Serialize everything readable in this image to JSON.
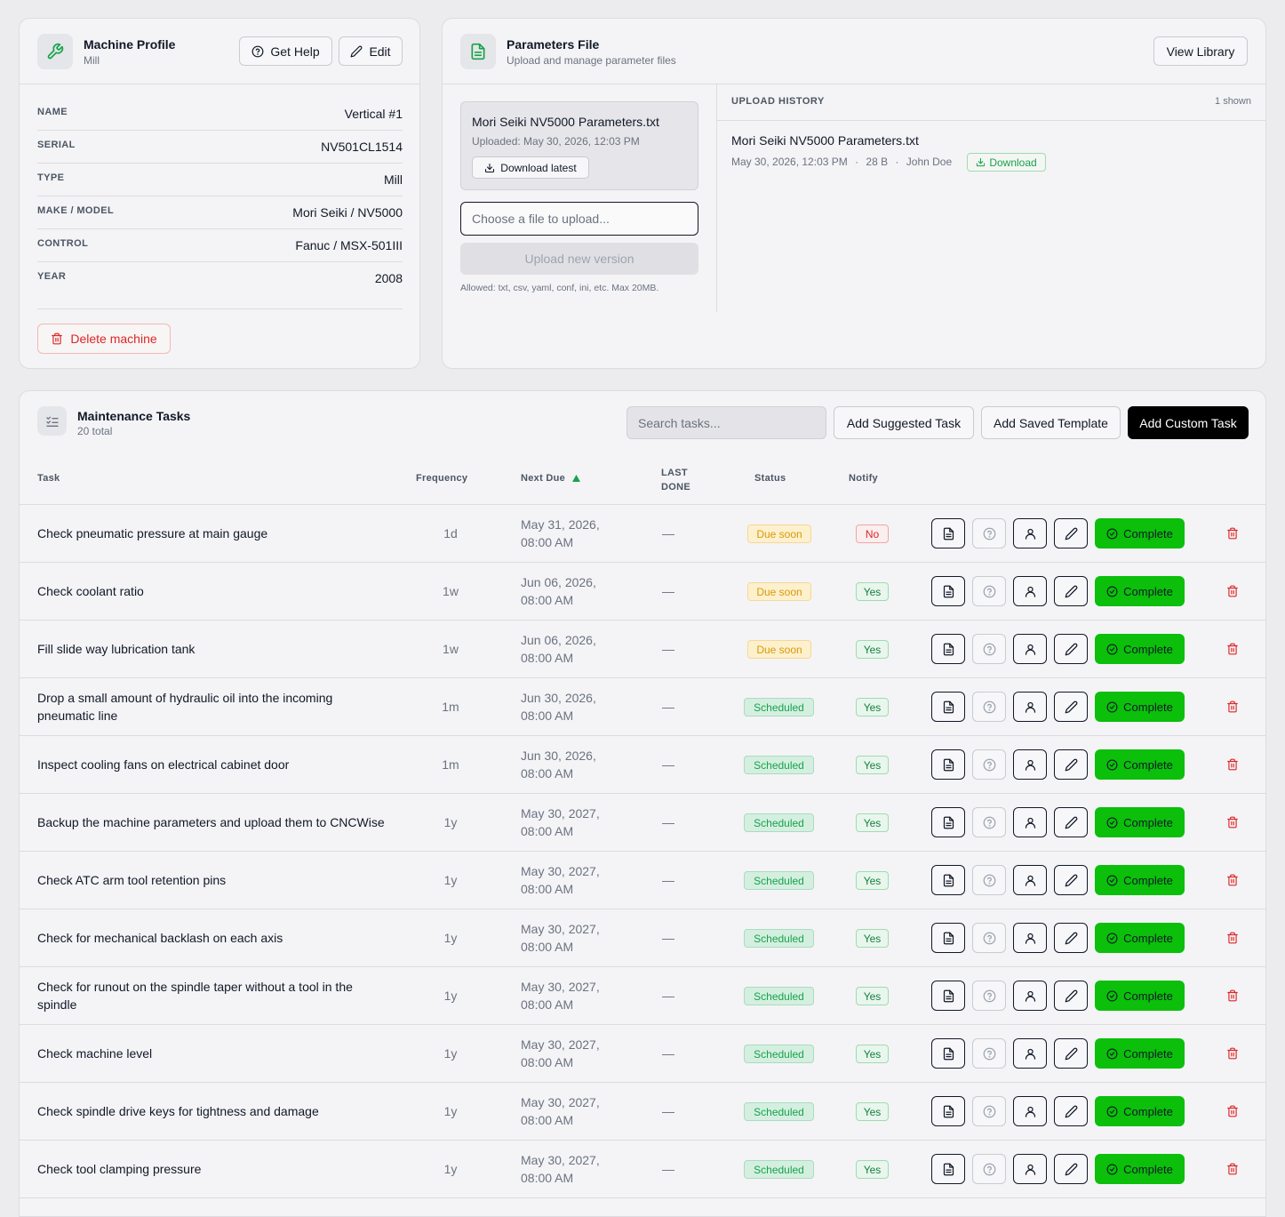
{
  "machine_profile": {
    "title": "Machine Profile",
    "subtitle": "Mill",
    "get_help_label": "Get Help",
    "edit_label": "Edit",
    "fields": [
      {
        "label": "NAME",
        "value": "Vertical #1"
      },
      {
        "label": "SERIAL",
        "value": "NV501CL1514"
      },
      {
        "label": "TYPE",
        "value": "Mill"
      },
      {
        "label": "MAKE / MODEL",
        "value": "Mori Seiki / NV5000"
      },
      {
        "label": "CONTROL",
        "value": "Fanuc / MSX-501III"
      },
      {
        "label": "YEAR",
        "value": "2008"
      }
    ],
    "delete_label": "Delete machine"
  },
  "parameters_file": {
    "title": "Parameters File",
    "subtitle": "Upload and manage parameter files",
    "view_library_label": "View Library",
    "current_file": {
      "name": "Mori Seiki NV5000 Parameters.txt",
      "uploaded": "Uploaded: May 30, 2026, 12:03 PM",
      "download_label": "Download latest"
    },
    "file_input_placeholder": "Choose a file to upload...",
    "upload_label": "Upload new version",
    "allowed_text": "Allowed: txt, csv, yaml, conf, ini, etc. Max 20MB.",
    "history": {
      "title": "UPLOAD HISTORY",
      "count": "1 shown",
      "items": [
        {
          "name": "Mori Seiki NV5000 Parameters.txt",
          "date": "May 30, 2026, 12:03 PM",
          "size": "28 B",
          "user": "John Doe",
          "download_label": "Download"
        }
      ]
    }
  },
  "maintenance": {
    "title": "Maintenance Tasks",
    "subtitle": "20 total",
    "search_placeholder": "Search tasks...",
    "add_suggested_label": "Add Suggested Task",
    "add_template_label": "Add Saved Template",
    "add_custom_label": "Add Custom Task",
    "columns": {
      "task": "Task",
      "frequency": "Frequency",
      "next_due": "Next Due",
      "last_done_1": "LAST",
      "last_done_2": "DONE",
      "status": "Status",
      "notify": "Notify"
    },
    "complete_label": "Complete",
    "tasks": [
      {
        "name": "Check pneumatic pressure at main gauge",
        "freq": "1d",
        "due1": "May 31, 2026,",
        "due2": "08:00 AM",
        "last": "—",
        "status": "Due soon",
        "notify": "No"
      },
      {
        "name": "Check coolant ratio",
        "freq": "1w",
        "due1": "Jun 06, 2026,",
        "due2": "08:00 AM",
        "last": "—",
        "status": "Due soon",
        "notify": "Yes"
      },
      {
        "name": "Fill slide way lubrication tank",
        "freq": "1w",
        "due1": "Jun 06, 2026,",
        "due2": "08:00 AM",
        "last": "—",
        "status": "Due soon",
        "notify": "Yes"
      },
      {
        "name": "Drop a small amount of hydraulic oil into the incoming pneumatic line",
        "freq": "1m",
        "due1": "Jun 30, 2026,",
        "due2": "08:00 AM",
        "last": "—",
        "status": "Scheduled",
        "notify": "Yes"
      },
      {
        "name": "Inspect cooling fans on electrical cabinet door",
        "freq": "1m",
        "due1": "Jun 30, 2026,",
        "due2": "08:00 AM",
        "last": "—",
        "status": "Scheduled",
        "notify": "Yes"
      },
      {
        "name": "Backup the machine parameters and upload them to CNCWise",
        "freq": "1y",
        "due1": "May 30, 2027,",
        "due2": "08:00 AM",
        "last": "—",
        "status": "Scheduled",
        "notify": "Yes"
      },
      {
        "name": "Check ATC arm tool retention pins",
        "freq": "1y",
        "due1": "May 30, 2027,",
        "due2": "08:00 AM",
        "last": "—",
        "status": "Scheduled",
        "notify": "Yes"
      },
      {
        "name": "Check for mechanical backlash on each axis",
        "freq": "1y",
        "due1": "May 30, 2027,",
        "due2": "08:00 AM",
        "last": "—",
        "status": "Scheduled",
        "notify": "Yes"
      },
      {
        "name": "Check for runout on the spindle taper without a tool in the spindle",
        "freq": "1y",
        "due1": "May 30, 2027,",
        "due2": "08:00 AM",
        "last": "—",
        "status": "Scheduled",
        "notify": "Yes"
      },
      {
        "name": "Check machine level",
        "freq": "1y",
        "due1": "May 30, 2027,",
        "due2": "08:00 AM",
        "last": "—",
        "status": "Scheduled",
        "notify": "Yes"
      },
      {
        "name": "Check spindle drive keys for tightness and damage",
        "freq": "1y",
        "due1": "May 30, 2027,",
        "due2": "08:00 AM",
        "last": "—",
        "status": "Scheduled",
        "notify": "Yes"
      },
      {
        "name": "Check tool clamping pressure",
        "freq": "1y",
        "due1": "May 30, 2027,",
        "due2": "08:00 AM",
        "last": "—",
        "status": "Scheduled",
        "notify": "Yes"
      }
    ]
  },
  "colors": {
    "accent_green": "#0bbf0b",
    "danger_red": "#dc2626",
    "warning_amber": "#d99a07"
  }
}
